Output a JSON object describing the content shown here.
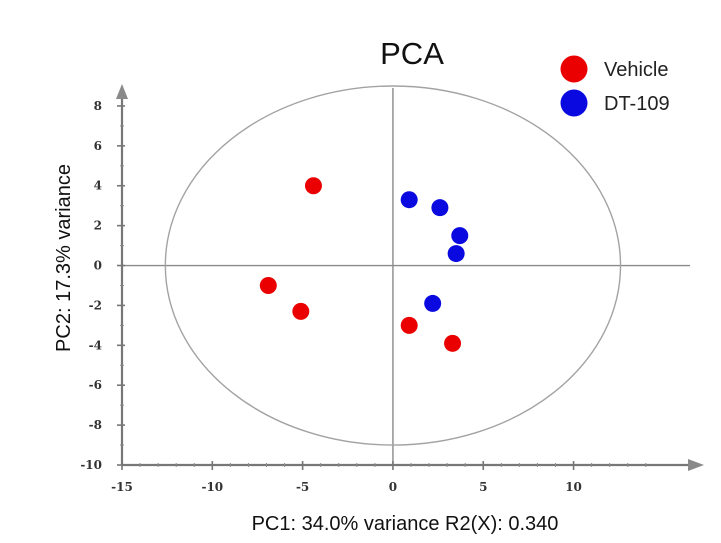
{
  "chart_data": {
    "type": "scatter",
    "title": "PCA",
    "xlabel": "PC1: 34.0% variance R2(X): 0.340",
    "ylabel": "PC2: 17.3% variance",
    "xlim": [
      -15,
      15
    ],
    "ylim": [
      -10,
      10
    ],
    "x_ticks": [
      -15,
      -10,
      -5,
      0,
      5,
      10
    ],
    "y_ticks": [
      8,
      6,
      4,
      2,
      0,
      -2,
      -4,
      -6,
      -8,
      -10
    ],
    "x_tick_labels": [
      "-15",
      "-10",
      "-5",
      "0",
      "5",
      "10"
    ],
    "y_tick_labels": [
      "8",
      "6",
      "4",
      "2",
      "0",
      "-2",
      "-4",
      "-6",
      "-8",
      "-10"
    ],
    "legend_position": "top-right",
    "confidence_ellipse": {
      "center_x": 0,
      "center_y": 0,
      "radius_x": 12.6,
      "radius_y": 9
    },
    "series": [
      {
        "name": "Vehicle",
        "color": "#ea0000",
        "points": [
          {
            "x": -4.4,
            "y": 4.0
          },
          {
            "x": -6.9,
            "y": -1.0
          },
          {
            "x": -5.1,
            "y": -2.3
          },
          {
            "x": 0.9,
            "y": -3.0
          },
          {
            "x": 3.3,
            "y": -3.9
          }
        ]
      },
      {
        "name": "DT-109",
        "color": "#0a0ae0",
        "points": [
          {
            "x": 0.9,
            "y": 3.3
          },
          {
            "x": 2.6,
            "y": 2.9
          },
          {
            "x": 3.7,
            "y": 1.5
          },
          {
            "x": 3.5,
            "y": 0.6
          },
          {
            "x": 2.2,
            "y": -1.9
          }
        ]
      }
    ]
  }
}
